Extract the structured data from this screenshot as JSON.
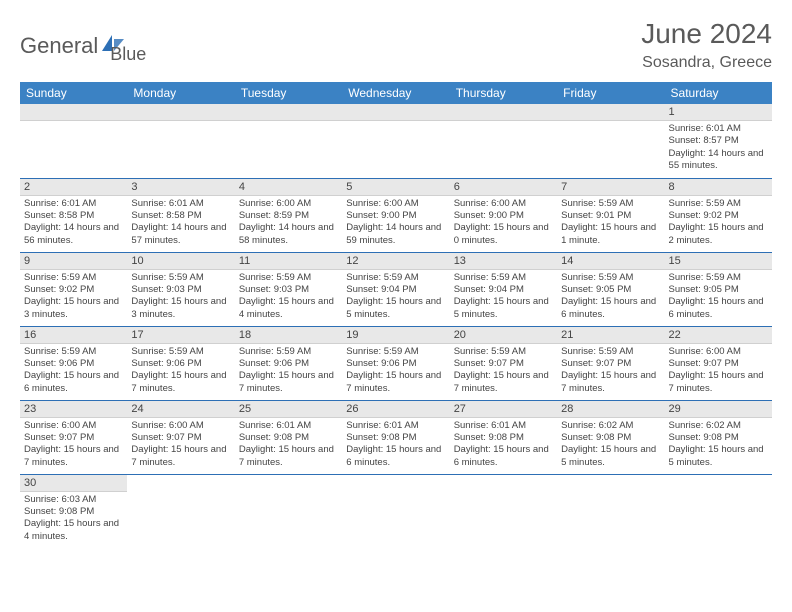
{
  "logo": {
    "text1": "General",
    "text2": "Blue"
  },
  "title": "June 2024",
  "location": "Sosandra, Greece",
  "dayHeaders": [
    "Sunday",
    "Monday",
    "Tuesday",
    "Wednesday",
    "Thursday",
    "Friday",
    "Saturday"
  ],
  "colors": {
    "headerBg": "#3b82c4",
    "rowBorder": "#2d6fb5",
    "dayNumBg": "#e8e8e8"
  },
  "weeks": [
    [
      {
        "empty": true
      },
      {
        "empty": true
      },
      {
        "empty": true
      },
      {
        "empty": true
      },
      {
        "empty": true
      },
      {
        "empty": true
      },
      {
        "num": "1",
        "sunrise": "Sunrise: 6:01 AM",
        "sunset": "Sunset: 8:57 PM",
        "daylight": "Daylight: 14 hours and 55 minutes."
      }
    ],
    [
      {
        "num": "2",
        "sunrise": "Sunrise: 6:01 AM",
        "sunset": "Sunset: 8:58 PM",
        "daylight": "Daylight: 14 hours and 56 minutes."
      },
      {
        "num": "3",
        "sunrise": "Sunrise: 6:01 AM",
        "sunset": "Sunset: 8:58 PM",
        "daylight": "Daylight: 14 hours and 57 minutes."
      },
      {
        "num": "4",
        "sunrise": "Sunrise: 6:00 AM",
        "sunset": "Sunset: 8:59 PM",
        "daylight": "Daylight: 14 hours and 58 minutes."
      },
      {
        "num": "5",
        "sunrise": "Sunrise: 6:00 AM",
        "sunset": "Sunset: 9:00 PM",
        "daylight": "Daylight: 14 hours and 59 minutes."
      },
      {
        "num": "6",
        "sunrise": "Sunrise: 6:00 AM",
        "sunset": "Sunset: 9:00 PM",
        "daylight": "Daylight: 15 hours and 0 minutes."
      },
      {
        "num": "7",
        "sunrise": "Sunrise: 5:59 AM",
        "sunset": "Sunset: 9:01 PM",
        "daylight": "Daylight: 15 hours and 1 minute."
      },
      {
        "num": "8",
        "sunrise": "Sunrise: 5:59 AM",
        "sunset": "Sunset: 9:02 PM",
        "daylight": "Daylight: 15 hours and 2 minutes."
      }
    ],
    [
      {
        "num": "9",
        "sunrise": "Sunrise: 5:59 AM",
        "sunset": "Sunset: 9:02 PM",
        "daylight": "Daylight: 15 hours and 3 minutes."
      },
      {
        "num": "10",
        "sunrise": "Sunrise: 5:59 AM",
        "sunset": "Sunset: 9:03 PM",
        "daylight": "Daylight: 15 hours and 3 minutes."
      },
      {
        "num": "11",
        "sunrise": "Sunrise: 5:59 AM",
        "sunset": "Sunset: 9:03 PM",
        "daylight": "Daylight: 15 hours and 4 minutes."
      },
      {
        "num": "12",
        "sunrise": "Sunrise: 5:59 AM",
        "sunset": "Sunset: 9:04 PM",
        "daylight": "Daylight: 15 hours and 5 minutes."
      },
      {
        "num": "13",
        "sunrise": "Sunrise: 5:59 AM",
        "sunset": "Sunset: 9:04 PM",
        "daylight": "Daylight: 15 hours and 5 minutes."
      },
      {
        "num": "14",
        "sunrise": "Sunrise: 5:59 AM",
        "sunset": "Sunset: 9:05 PM",
        "daylight": "Daylight: 15 hours and 6 minutes."
      },
      {
        "num": "15",
        "sunrise": "Sunrise: 5:59 AM",
        "sunset": "Sunset: 9:05 PM",
        "daylight": "Daylight: 15 hours and 6 minutes."
      }
    ],
    [
      {
        "num": "16",
        "sunrise": "Sunrise: 5:59 AM",
        "sunset": "Sunset: 9:06 PM",
        "daylight": "Daylight: 15 hours and 6 minutes."
      },
      {
        "num": "17",
        "sunrise": "Sunrise: 5:59 AM",
        "sunset": "Sunset: 9:06 PM",
        "daylight": "Daylight: 15 hours and 7 minutes."
      },
      {
        "num": "18",
        "sunrise": "Sunrise: 5:59 AM",
        "sunset": "Sunset: 9:06 PM",
        "daylight": "Daylight: 15 hours and 7 minutes."
      },
      {
        "num": "19",
        "sunrise": "Sunrise: 5:59 AM",
        "sunset": "Sunset: 9:06 PM",
        "daylight": "Daylight: 15 hours and 7 minutes."
      },
      {
        "num": "20",
        "sunrise": "Sunrise: 5:59 AM",
        "sunset": "Sunset: 9:07 PM",
        "daylight": "Daylight: 15 hours and 7 minutes."
      },
      {
        "num": "21",
        "sunrise": "Sunrise: 5:59 AM",
        "sunset": "Sunset: 9:07 PM",
        "daylight": "Daylight: 15 hours and 7 minutes."
      },
      {
        "num": "22",
        "sunrise": "Sunrise: 6:00 AM",
        "sunset": "Sunset: 9:07 PM",
        "daylight": "Daylight: 15 hours and 7 minutes."
      }
    ],
    [
      {
        "num": "23",
        "sunrise": "Sunrise: 6:00 AM",
        "sunset": "Sunset: 9:07 PM",
        "daylight": "Daylight: 15 hours and 7 minutes."
      },
      {
        "num": "24",
        "sunrise": "Sunrise: 6:00 AM",
        "sunset": "Sunset: 9:07 PM",
        "daylight": "Daylight: 15 hours and 7 minutes."
      },
      {
        "num": "25",
        "sunrise": "Sunrise: 6:01 AM",
        "sunset": "Sunset: 9:08 PM",
        "daylight": "Daylight: 15 hours and 7 minutes."
      },
      {
        "num": "26",
        "sunrise": "Sunrise: 6:01 AM",
        "sunset": "Sunset: 9:08 PM",
        "daylight": "Daylight: 15 hours and 6 minutes."
      },
      {
        "num": "27",
        "sunrise": "Sunrise: 6:01 AM",
        "sunset": "Sunset: 9:08 PM",
        "daylight": "Daylight: 15 hours and 6 minutes."
      },
      {
        "num": "28",
        "sunrise": "Sunrise: 6:02 AM",
        "sunset": "Sunset: 9:08 PM",
        "daylight": "Daylight: 15 hours and 5 minutes."
      },
      {
        "num": "29",
        "sunrise": "Sunrise: 6:02 AM",
        "sunset": "Sunset: 9:08 PM",
        "daylight": "Daylight: 15 hours and 5 minutes."
      }
    ],
    [
      {
        "num": "30",
        "sunrise": "Sunrise: 6:03 AM",
        "sunset": "Sunset: 9:08 PM",
        "daylight": "Daylight: 15 hours and 4 minutes."
      },
      {
        "empty": true
      },
      {
        "empty": true
      },
      {
        "empty": true
      },
      {
        "empty": true
      },
      {
        "empty": true
      },
      {
        "empty": true
      }
    ]
  ]
}
